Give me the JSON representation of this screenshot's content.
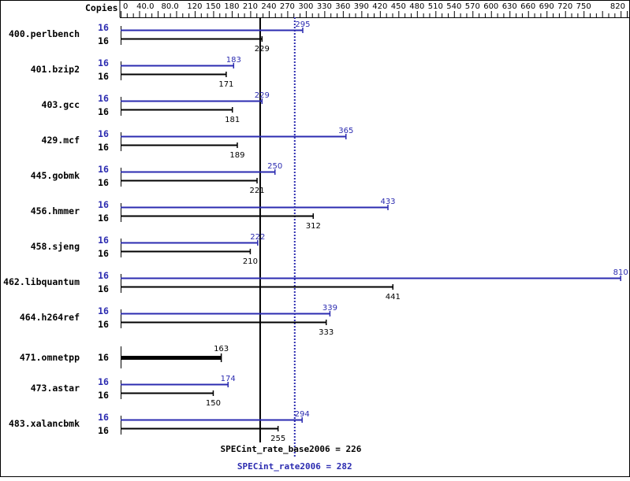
{
  "chart_data": {
    "type": "bar",
    "orientation": "horizontal",
    "xlabel": "Copies",
    "xlim": [
      0,
      820
    ],
    "x_ticks": [
      "0",
      "40.0",
      "80.0",
      "120",
      "150",
      "180",
      "210",
      "240",
      "270",
      "300",
      "330",
      "360",
      "390",
      "420",
      "450",
      "480",
      "510",
      "540",
      "570",
      "600",
      "630",
      "660",
      "690",
      "720",
      "750",
      "820"
    ],
    "colors": {
      "peak": "#2b2bb0",
      "base": "#000000"
    },
    "categories": [
      "400.perlbench",
      "401.bzip2",
      "403.gcc",
      "429.mcf",
      "445.gobmk",
      "456.hmmer",
      "458.sjeng",
      "462.libquantum",
      "464.h264ref",
      "471.omnetpp",
      "473.astar",
      "483.xalancbmk"
    ],
    "copies_peak": [
      "16",
      "16",
      "16",
      "16",
      "16",
      "16",
      "16",
      "16",
      "16",
      null,
      "16",
      "16"
    ],
    "copies_base": [
      "16",
      "16",
      "16",
      "16",
      "16",
      "16",
      "16",
      "16",
      "16",
      "16",
      "16",
      "16"
    ],
    "series": [
      {
        "key": "peak",
        "values": [
          295,
          183,
          229,
          365,
          250,
          433,
          222,
          810,
          339,
          null,
          174,
          294
        ]
      },
      {
        "key": "base",
        "values": [
          229,
          171,
          181,
          189,
          221,
          312,
          210,
          441,
          333,
          163,
          150,
          255
        ]
      }
    ],
    "reference_lines": [
      {
        "label": "SPECint_rate_base2006 = 226",
        "value": 226,
        "style": "solid",
        "color": "#000000"
      },
      {
        "label": "SPECint_rate2006 = 282",
        "value": 282,
        "style": "dotted",
        "color": "#2b2bb0"
      }
    ]
  }
}
